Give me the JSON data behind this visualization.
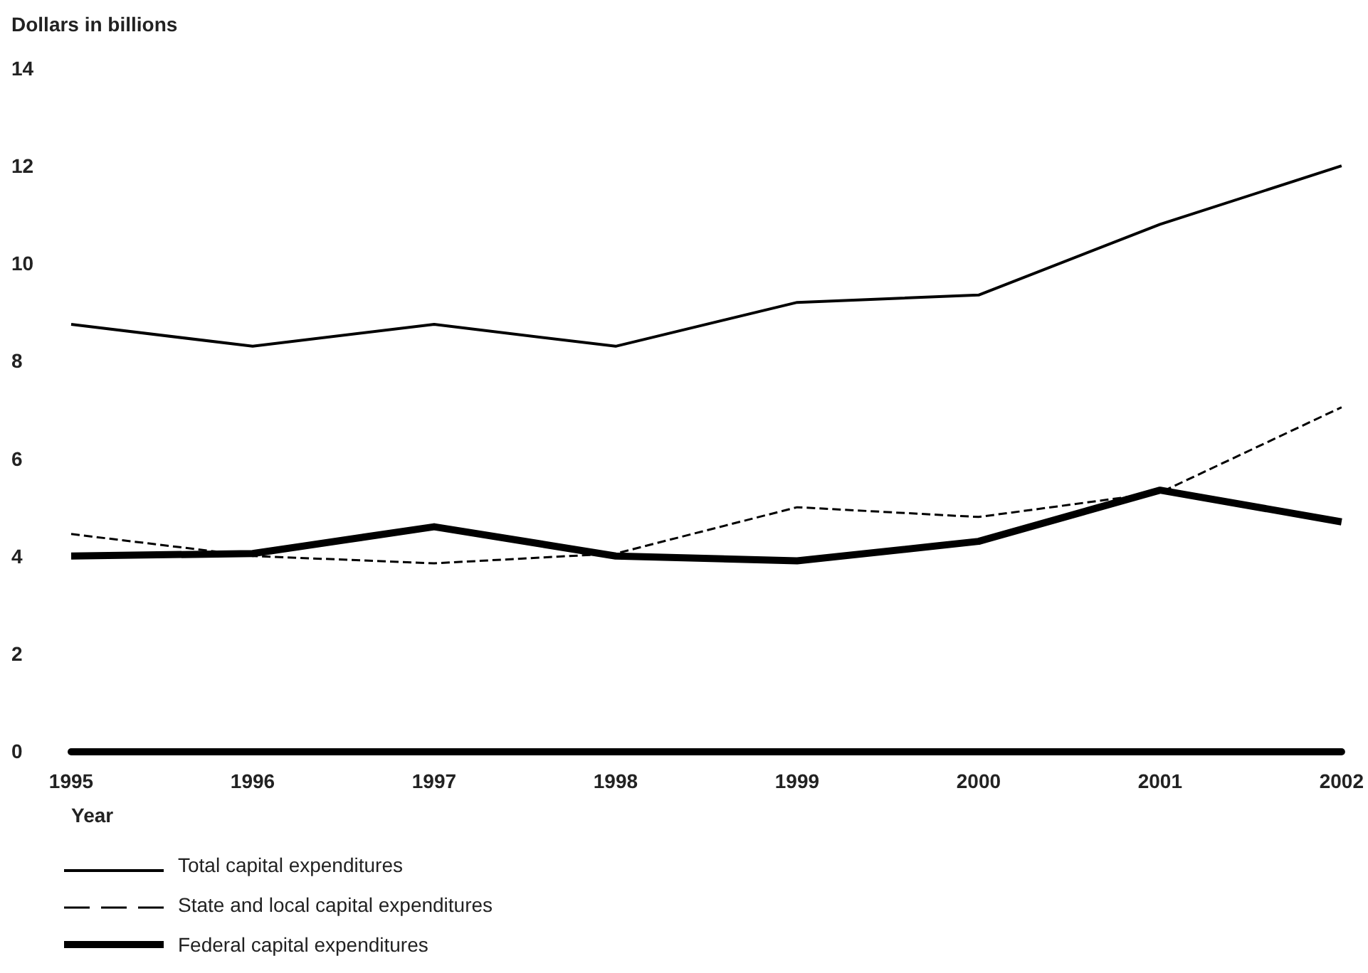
{
  "chart_data": {
    "type": "line",
    "ylabel": "Dollars in billions",
    "xlabel": "Year",
    "categories": [
      "1995",
      "1996",
      "1997",
      "1998",
      "1999",
      "2000",
      "2001",
      "2002"
    ],
    "series": [
      {
        "name": "Total capital expenditures",
        "color": "#000000",
        "line_style": "solid",
        "values": [
          8.75,
          8.3,
          8.75,
          8.3,
          9.2,
          9.35,
          10.8,
          12.0
        ]
      },
      {
        "name": "State and local capital expenditures",
        "color": "#000000",
        "line_style": "dashed",
        "values": [
          4.45,
          4.0,
          3.85,
          4.05,
          5.0,
          4.8,
          5.3,
          7.05
        ]
      },
      {
        "name": "Federal capital expenditures",
        "color": "#000000",
        "line_style": "solid",
        "values": [
          4.0,
          4.05,
          4.6,
          4.0,
          3.9,
          4.3,
          5.35,
          4.7
        ]
      }
    ],
    "ylim": [
      0,
      14
    ],
    "yticks": [
      0,
      2,
      4,
      6,
      8,
      10,
      12,
      14
    ],
    "grid": false,
    "marker": "none",
    "legend": "bottom left"
  }
}
